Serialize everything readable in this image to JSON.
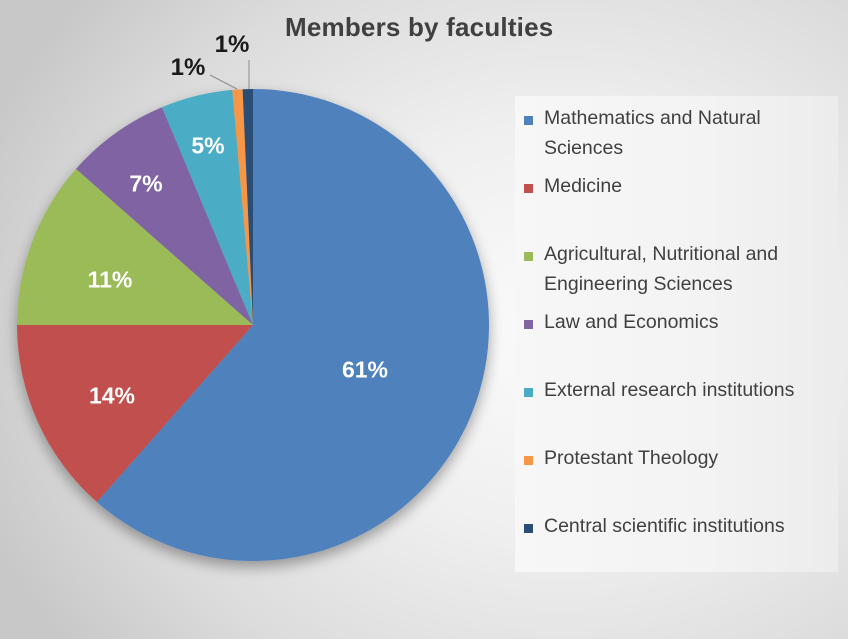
{
  "title": "Members by faculties",
  "chart_data": {
    "type": "pie",
    "title": "Members by faculties",
    "categories": [
      "Mathematics and Natural Sciences",
      "Medicine",
      "Agricultural, Nutritional and Engineering Sciences",
      "Law and Economics",
      "External research institutions",
      "Protestant Theology",
      "Central scientific institutions"
    ],
    "values": [
      61,
      14,
      11,
      7,
      5,
      1,
      1
    ],
    "value_labels": [
      "61%",
      "14%",
      "11%",
      "7%",
      "5%",
      "1%",
      "1%"
    ],
    "colors": [
      "#4f81bd",
      "#c0504d",
      "#9bbb59",
      "#8064a2",
      "#4bacc6",
      "#f79646",
      "#2c4d75"
    ],
    "start_angle": "12 o'clock",
    "direction": "clockwise",
    "legend_position": "right"
  },
  "legend": [
    {
      "label": "Mathematics and Natural Sciences",
      "color": "#4f81bd"
    },
    {
      "label": "Medicine",
      "color": "#c0504d"
    },
    {
      "label": "Agricultural, Nutritional and Engineering Sciences",
      "color": "#9bbb59"
    },
    {
      "label": "Law and Economics",
      "color": "#8064a2"
    },
    {
      "label": "External research institutions",
      "color": "#4bacc6"
    },
    {
      "label": "Protestant Theology",
      "color": "#f79646"
    },
    {
      "label": "Central scientific institutions",
      "color": "#2c4d75"
    }
  ],
  "labels": {
    "math": "61%",
    "medicine": "14%",
    "agri": "11%",
    "law": "7%",
    "external": "5%",
    "protestant": "1%",
    "central": "1%"
  }
}
